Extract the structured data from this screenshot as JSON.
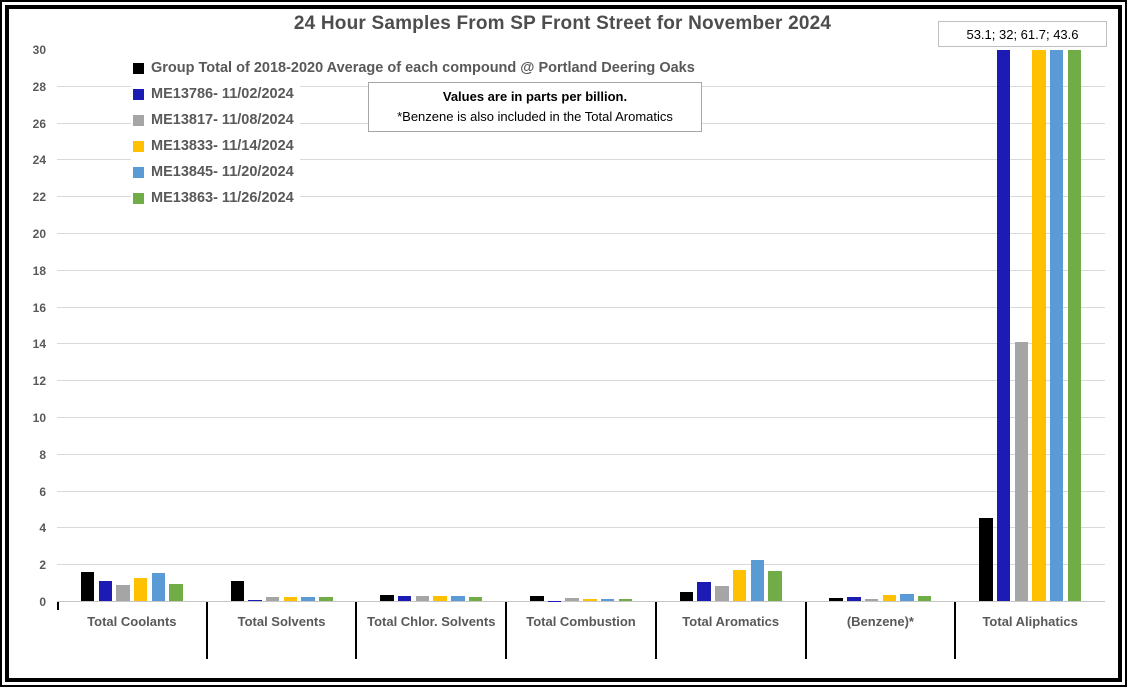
{
  "title": "24 Hour Samples From SP Front Street for November 2024",
  "annotation": {
    "text": "53.1; 32; 61.7; 43.6"
  },
  "note": {
    "line1": "Values are in parts per billion.",
    "line2": "*Benzene is also included in the Total Aromatics"
  },
  "colors": {
    "grid": "#d9d9d9",
    "axis_text": "#595959",
    "title_text": "#4d4d4d",
    "frame": "#000000"
  },
  "chart_data": {
    "type": "bar",
    "title": "24 Hour Samples From SP Front Street for November 2024",
    "unit": "parts per billion",
    "ylim": [
      0,
      30
    ],
    "ytick_step": 2,
    "grid": true,
    "legend_position": "top-left-inside",
    "categories": [
      "Total Coolants",
      "Total Solvents",
      "Total Chlor. Solvents",
      "Total Combustion",
      "Total Aromatics",
      "(Benzene)*",
      "Total Aliphatics"
    ],
    "series": [
      {
        "name": "Group Total of 2018-2020 Average of each compound @ Portland Deering Oaks",
        "color": "#000000",
        "values": [
          1.55,
          1.1,
          0.35,
          0.28,
          0.5,
          0.15,
          4.5
        ]
      },
      {
        "name": "ME13786- 11/02/2024",
        "color": "#1c1cb4",
        "values": [
          1.1,
          0.08,
          0.28,
          0.02,
          1.05,
          0.2,
          53.1
        ]
      },
      {
        "name": "ME13817- 11/08/2024",
        "color": "#a5a5a5",
        "values": [
          0.85,
          0.2,
          0.28,
          0.15,
          0.8,
          0.12,
          14.1
        ]
      },
      {
        "name": "ME13833- 11/14/2024",
        "color": "#ffc000",
        "values": [
          1.25,
          0.2,
          0.28,
          0.1,
          1.7,
          0.3,
          32
        ]
      },
      {
        "name": "ME13845- 11/20/2024",
        "color": "#5b9bd5",
        "values": [
          1.5,
          0.2,
          0.28,
          0.12,
          2.25,
          0.4,
          61.7
        ]
      },
      {
        "name": "ME13863- 11/26/2024",
        "color": "#70ad47",
        "values": [
          0.9,
          0.2,
          0.2,
          0.1,
          1.65,
          0.28,
          43.6
        ]
      }
    ],
    "offscale_annotation": "53.1; 32; 61.7; 43.6"
  }
}
